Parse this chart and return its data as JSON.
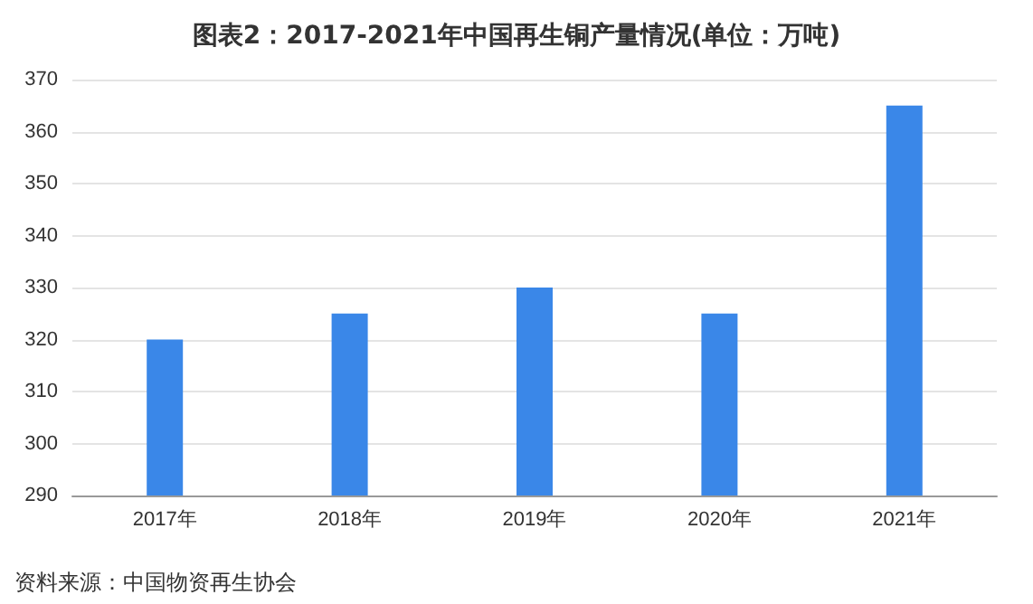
{
  "chart_data": {
    "type": "bar",
    "title": "图表2：2017-2021年中国再生铜产量情况(单位：万吨)",
    "categories": [
      "2017年",
      "2018年",
      "2019年",
      "2020年",
      "2021年"
    ],
    "values": [
      320,
      325,
      330,
      325,
      365
    ],
    "color": "#3a87e8",
    "ylim": [
      290,
      370
    ],
    "yticks": [
      290,
      300,
      310,
      320,
      330,
      340,
      350,
      360,
      370
    ],
    "grid": "y",
    "annotations": [
      "资料来源：中国物资再生协会"
    ]
  }
}
